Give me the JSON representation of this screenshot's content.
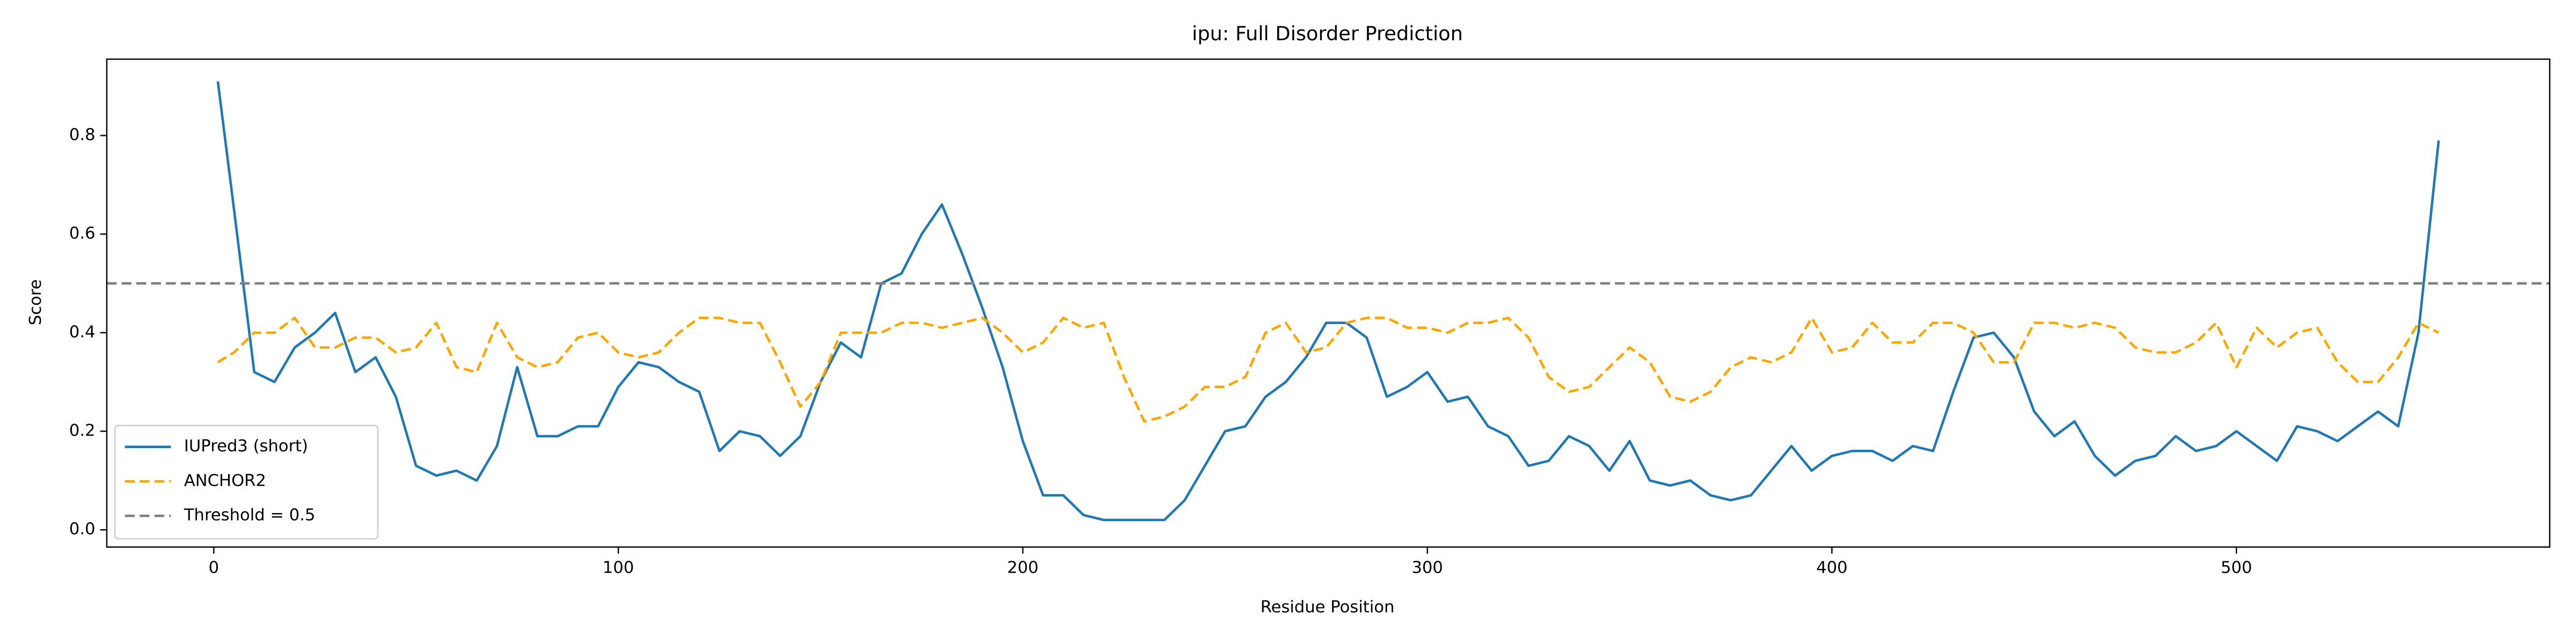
{
  "chart_data": {
    "type": "line",
    "title": "ipu: Full Disorder Prediction",
    "x_label": "Residue Position",
    "y_label": "Score",
    "x": [
      1,
      5,
      10,
      15,
      20,
      25,
      30,
      35,
      40,
      45,
      50,
      55,
      60,
      65,
      70,
      75,
      80,
      85,
      90,
      95,
      100,
      105,
      110,
      115,
      120,
      125,
      130,
      135,
      140,
      145,
      150,
      155,
      160,
      165,
      170,
      175,
      180,
      185,
      190,
      195,
      200,
      205,
      210,
      215,
      220,
      225,
      230,
      235,
      240,
      245,
      250,
      255,
      260,
      265,
      270,
      275,
      280,
      285,
      290,
      295,
      300,
      305,
      310,
      315,
      320,
      325,
      330,
      335,
      340,
      345,
      350,
      355,
      360,
      365,
      370,
      375,
      380,
      385,
      390,
      395,
      400,
      405,
      410,
      415,
      420,
      425,
      430,
      435,
      440,
      445,
      450,
      455,
      460,
      465,
      470,
      475,
      480,
      485,
      490,
      495,
      500,
      505,
      510,
      515,
      520,
      525,
      530,
      535,
      540,
      545,
      550
    ],
    "series": [
      {
        "name": "IUPred3 (short)",
        "color": "#1f77b4",
        "linestyle": "solid",
        "values": [
          0.91,
          0.65,
          0.32,
          0.3,
          0.37,
          0.4,
          0.44,
          0.32,
          0.35,
          0.27,
          0.13,
          0.11,
          0.12,
          0.1,
          0.17,
          0.33,
          0.19,
          0.19,
          0.21,
          0.21,
          0.29,
          0.34,
          0.33,
          0.3,
          0.28,
          0.16,
          0.2,
          0.19,
          0.15,
          0.19,
          0.3,
          0.38,
          0.35,
          0.5,
          0.52,
          0.6,
          0.66,
          0.56,
          0.45,
          0.33,
          0.18,
          0.07,
          0.07,
          0.03,
          0.02,
          0.02,
          0.02,
          0.02,
          0.06,
          0.13,
          0.2,
          0.21,
          0.27,
          0.3,
          0.35,
          0.42,
          0.42,
          0.39,
          0.27,
          0.29,
          0.32,
          0.26,
          0.27,
          0.21,
          0.19,
          0.13,
          0.14,
          0.19,
          0.17,
          0.12,
          0.18,
          0.1,
          0.09,
          0.1,
          0.07,
          0.06,
          0.07,
          0.12,
          0.17,
          0.12,
          0.15,
          0.16,
          0.16,
          0.14,
          0.17,
          0.16,
          0.28,
          0.39,
          0.4,
          0.35,
          0.24,
          0.19,
          0.22,
          0.15,
          0.11,
          0.14,
          0.15,
          0.19,
          0.16,
          0.17,
          0.2,
          0.17,
          0.14,
          0.21,
          0.2,
          0.18,
          0.21,
          0.24,
          0.21,
          0.4,
          0.79
        ]
      },
      {
        "name": "ANCHOR2",
        "color": "orange",
        "linestyle": "dashed",
        "values": [
          0.34,
          0.36,
          0.4,
          0.4,
          0.43,
          0.37,
          0.37,
          0.39,
          0.39,
          0.36,
          0.37,
          0.42,
          0.33,
          0.32,
          0.42,
          0.35,
          0.33,
          0.34,
          0.39,
          0.4,
          0.36,
          0.35,
          0.36,
          0.4,
          0.43,
          0.43,
          0.42,
          0.42,
          0.34,
          0.25,
          0.3,
          0.4,
          0.4,
          0.4,
          0.42,
          0.42,
          0.41,
          0.42,
          0.43,
          0.4,
          0.36,
          0.38,
          0.43,
          0.41,
          0.42,
          0.31,
          0.22,
          0.23,
          0.25,
          0.29,
          0.29,
          0.31,
          0.4,
          0.42,
          0.36,
          0.37,
          0.42,
          0.43,
          0.43,
          0.41,
          0.41,
          0.4,
          0.42,
          0.42,
          0.43,
          0.39,
          0.31,
          0.28,
          0.29,
          0.33,
          0.37,
          0.34,
          0.27,
          0.26,
          0.28,
          0.33,
          0.35,
          0.34,
          0.36,
          0.43,
          0.36,
          0.37,
          0.42,
          0.38,
          0.38,
          0.42,
          0.42,
          0.4,
          0.34,
          0.34,
          0.42,
          0.42,
          0.41,
          0.42,
          0.41,
          0.37,
          0.36,
          0.36,
          0.38,
          0.42,
          0.33,
          0.41,
          0.37,
          0.4,
          0.41,
          0.34,
          0.3,
          0.3,
          0.35,
          0.42,
          0.4
        ]
      }
    ],
    "hlines": [
      {
        "name": "Threshold = 0.5",
        "value": 0.5,
        "color": "gray",
        "linestyle": "dashed"
      }
    ],
    "xlim": [
      -26.45,
      577.45
    ],
    "ylim": [
      -0.035,
      0.955
    ],
    "xticks": [
      0,
      100,
      200,
      300,
      400,
      500
    ],
    "yticks": [
      {
        "value": 0,
        "label": "0.0"
      },
      0.2,
      0.4,
      0.6,
      0.8
    ],
    "legend": "lower left"
  }
}
